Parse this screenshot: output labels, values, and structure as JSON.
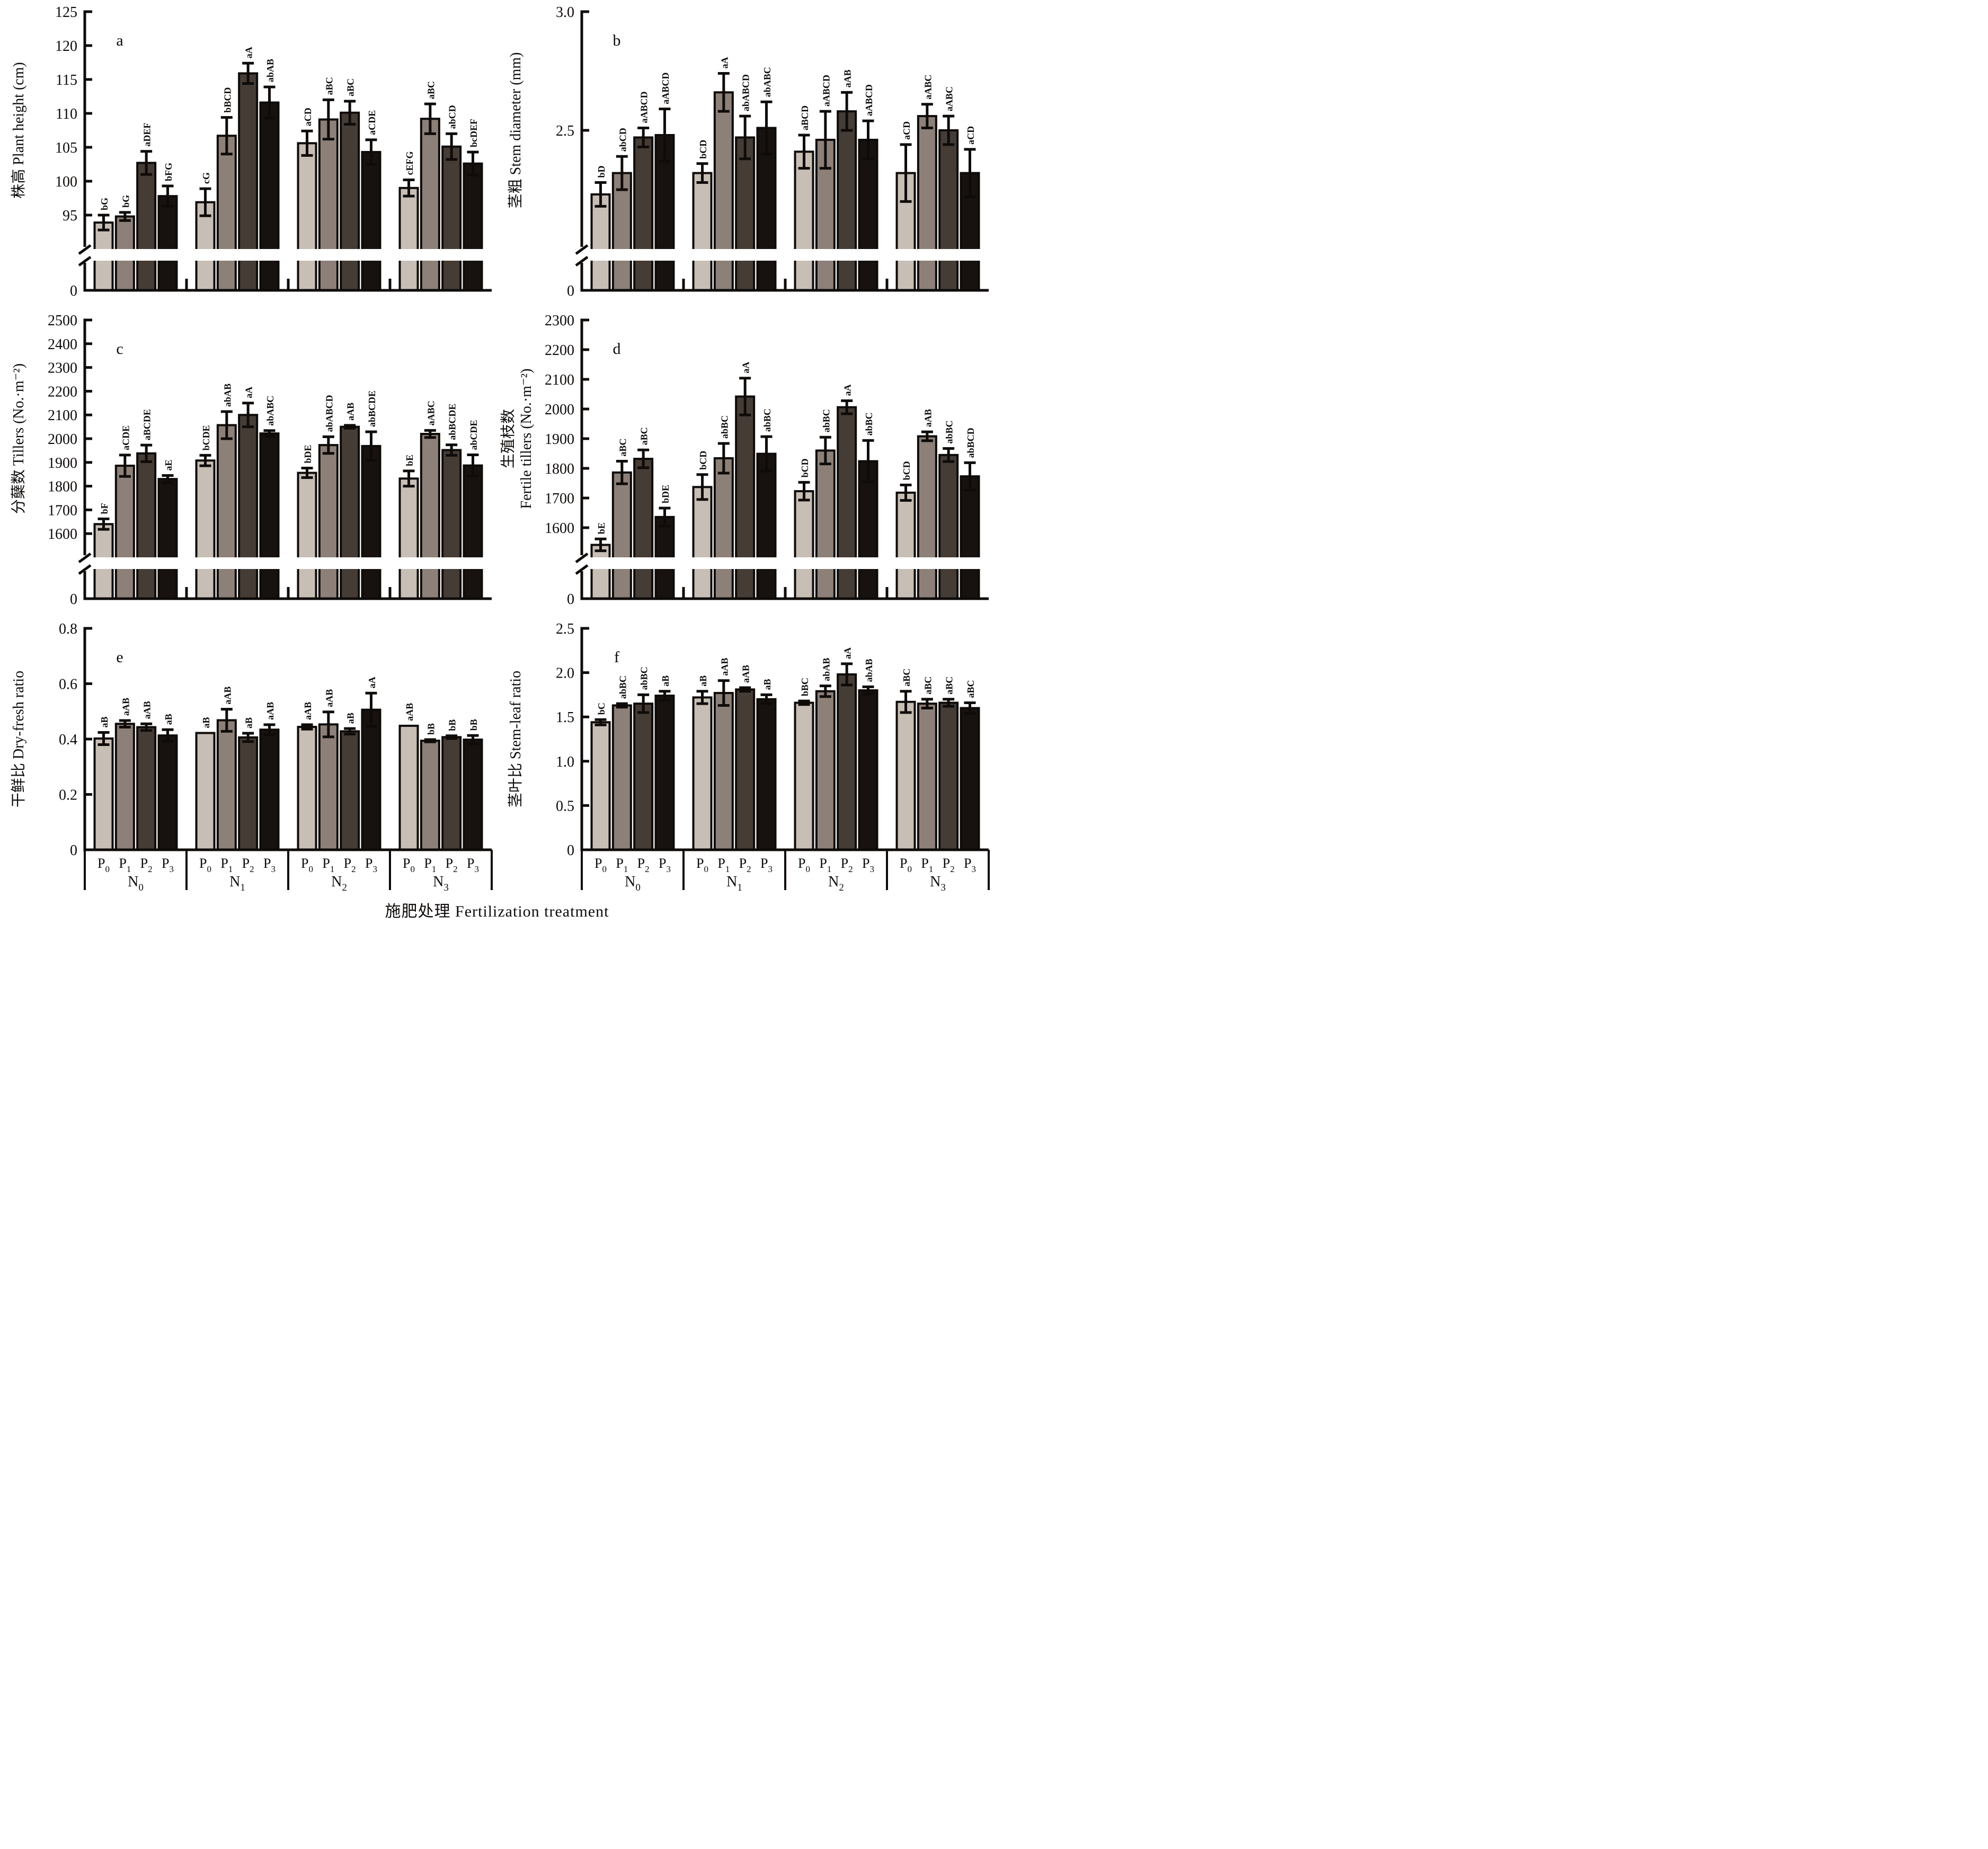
{
  "figure": {
    "x_axis_title": "施肥处理 Fertilization treatment",
    "p_labels": [
      {
        "base": "P",
        "sub": "0"
      },
      {
        "base": "P",
        "sub": "1"
      },
      {
        "base": "P",
        "sub": "2"
      },
      {
        "base": "P",
        "sub": "3"
      }
    ],
    "n_labels": [
      {
        "base": "N",
        "sub": "0"
      },
      {
        "base": "N",
        "sub": "1"
      },
      {
        "base": "N",
        "sub": "2"
      },
      {
        "base": "N",
        "sub": "3"
      }
    ],
    "bar_fill_colors": [
      "#c7beb6",
      "#8c8078",
      "#453c36",
      "#171210"
    ],
    "bar_edge_color": "#0e0b09",
    "axis_color": "#0e0b09",
    "background_color": "#ffffff"
  },
  "chart_data": [
    {
      "type": "bar",
      "panel_letter": "a",
      "ylabel_lines": [
        "株高 Plant height (cm)"
      ],
      "ylim": [
        90,
        125
      ],
      "axis_break": true,
      "zero_label": "0",
      "show_group_labels": false,
      "y_ticks": [
        {
          "v": 95,
          "t": "95"
        },
        {
          "v": 100,
          "t": "100"
        },
        {
          "v": 105,
          "t": "105"
        },
        {
          "v": 110,
          "t": "110"
        },
        {
          "v": 115,
          "t": "115"
        },
        {
          "v": 120,
          "t": "120"
        },
        {
          "v": 125,
          "t": "125"
        }
      ],
      "categories": [
        "P0",
        "P1",
        "P2",
        "P3"
      ],
      "groups": [
        {
          "name": "N0",
          "bars": [
            {
              "value": 93.9,
              "err": 1.1,
              "sig": "bG"
            },
            {
              "value": 94.8,
              "err": 0.6,
              "sig": "bG"
            },
            {
              "value": 102.7,
              "err": 1.7,
              "sig": "aDEF"
            },
            {
              "value": 97.8,
              "err": 1.5,
              "sig": "bFG"
            }
          ]
        },
        {
          "name": "N1",
          "bars": [
            {
              "value": 96.9,
              "err": 2.0,
              "sig": "cG"
            },
            {
              "value": 106.7,
              "err": 2.7,
              "sig": "bBCD"
            },
            {
              "value": 115.9,
              "err": 1.5,
              "sig": "aA"
            },
            {
              "value": 111.6,
              "err": 2.3,
              "sig": "abAB"
            }
          ]
        },
        {
          "name": "N2",
          "bars": [
            {
              "value": 105.6,
              "err": 1.8,
              "sig": "aCD"
            },
            {
              "value": 109.1,
              "err": 2.9,
              "sig": "aBC"
            },
            {
              "value": 110.1,
              "err": 1.7,
              "sig": "aBC"
            },
            {
              "value": 104.3,
              "err": 1.8,
              "sig": "aCDE"
            }
          ]
        },
        {
          "name": "N3",
          "bars": [
            {
              "value": 99.0,
              "err": 1.2,
              "sig": "cEFG"
            },
            {
              "value": 109.2,
              "err": 2.2,
              "sig": "aBC"
            },
            {
              "value": 105.1,
              "err": 1.9,
              "sig": "abCD"
            },
            {
              "value": 102.6,
              "err": 1.7,
              "sig": "bcDEF"
            }
          ]
        }
      ]
    },
    {
      "type": "bar",
      "panel_letter": "b",
      "ylabel_lines": [
        "茎粗 Stem diameter (mm)"
      ],
      "ylim": [
        2.0,
        3.0
      ],
      "axis_break": true,
      "zero_label": "0",
      "show_group_labels": false,
      "y_ticks": [
        {
          "v": 2.5,
          "t": "2.5"
        },
        {
          "v": 3.0,
          "t": "3.0"
        }
      ],
      "categories": [
        "P0",
        "P1",
        "P2",
        "P3"
      ],
      "groups": [
        {
          "name": "N0",
          "bars": [
            {
              "value": 2.23,
              "err": 0.05,
              "sig": "bD"
            },
            {
              "value": 2.32,
              "err": 0.07,
              "sig": "abCD"
            },
            {
              "value": 2.47,
              "err": 0.04,
              "sig": "aABCD"
            },
            {
              "value": 2.48,
              "err": 0.11,
              "sig": "aABCD"
            }
          ]
        },
        {
          "name": "N1",
          "bars": [
            {
              "value": 2.32,
              "err": 0.04,
              "sig": "bCD"
            },
            {
              "value": 2.66,
              "err": 0.08,
              "sig": "aA"
            },
            {
              "value": 2.47,
              "err": 0.09,
              "sig": "abABCD"
            },
            {
              "value": 2.51,
              "err": 0.11,
              "sig": "abABC"
            }
          ]
        },
        {
          "name": "N2",
          "bars": [
            {
              "value": 2.41,
              "err": 0.07,
              "sig": "aBCD"
            },
            {
              "value": 2.46,
              "err": 0.12,
              "sig": "aABCD"
            },
            {
              "value": 2.58,
              "err": 0.08,
              "sig": "aAB"
            },
            {
              "value": 2.46,
              "err": 0.08,
              "sig": "aABCD"
            }
          ]
        },
        {
          "name": "N3",
          "bars": [
            {
              "value": 2.32,
              "err": 0.12,
              "sig": "aCD"
            },
            {
              "value": 2.56,
              "err": 0.05,
              "sig": "aABC"
            },
            {
              "value": 2.5,
              "err": 0.06,
              "sig": "aABC"
            },
            {
              "value": 2.32,
              "err": 0.1,
              "sig": "aCD"
            }
          ]
        }
      ]
    },
    {
      "type": "bar",
      "panel_letter": "c",
      "ylabel_lines": [
        "分蘖数 Tillers (No.·m⁻²)"
      ],
      "ylim": [
        1500,
        2500
      ],
      "axis_break": true,
      "zero_label": "0",
      "show_group_labels": false,
      "y_ticks": [
        {
          "v": 1600,
          "t": "1600"
        },
        {
          "v": 1700,
          "t": "1700"
        },
        {
          "v": 1800,
          "t": "1800"
        },
        {
          "v": 1900,
          "t": "1900"
        },
        {
          "v": 2000,
          "t": "2000"
        },
        {
          "v": 2100,
          "t": "2100"
        },
        {
          "v": 2200,
          "t": "2200"
        },
        {
          "v": 2300,
          "t": "2300"
        },
        {
          "v": 2400,
          "t": "2400"
        },
        {
          "v": 2500,
          "t": "2500"
        }
      ],
      "categories": [
        "P0",
        "P1",
        "P2",
        "P3"
      ],
      "groups": [
        {
          "name": "N0",
          "bars": [
            {
              "value": 1640,
              "err": 22,
              "sig": "bF"
            },
            {
              "value": 1886,
              "err": 45,
              "sig": "aCDE"
            },
            {
              "value": 1938,
              "err": 35,
              "sig": "aBCDE"
            },
            {
              "value": 1830,
              "err": 15,
              "sig": "aE"
            }
          ]
        },
        {
          "name": "N1",
          "bars": [
            {
              "value": 1908,
              "err": 22,
              "sig": "bCDE"
            },
            {
              "value": 2057,
              "err": 57,
              "sig": "abAB"
            },
            {
              "value": 2100,
              "err": 50,
              "sig": "aA"
            },
            {
              "value": 2022,
              "err": 12,
              "sig": "abABC"
            }
          ]
        },
        {
          "name": "N2",
          "bars": [
            {
              "value": 1856,
              "err": 20,
              "sig": "bDE"
            },
            {
              "value": 1973,
              "err": 35,
              "sig": "abABCD"
            },
            {
              "value": 2050,
              "err": 6,
              "sig": "aAB"
            },
            {
              "value": 1969,
              "err": 60,
              "sig": "abBCDE"
            }
          ]
        },
        {
          "name": "N3",
          "bars": [
            {
              "value": 1832,
              "err": 32,
              "sig": "bE"
            },
            {
              "value": 2020,
              "err": 15,
              "sig": "aABC"
            },
            {
              "value": 1952,
              "err": 22,
              "sig": "abBCDE"
            },
            {
              "value": 1887,
              "err": 45,
              "sig": "abCDE"
            }
          ]
        }
      ]
    },
    {
      "type": "bar",
      "panel_letter": "d",
      "ylabel_lines": [
        "生殖枝数",
        "Fertile tillers (No.·m⁻²)"
      ],
      "ylim": [
        1500,
        2300
      ],
      "axis_break": true,
      "zero_label": "0",
      "show_group_labels": false,
      "y_ticks": [
        {
          "v": 1600,
          "t": "1600"
        },
        {
          "v": 1700,
          "t": "1700"
        },
        {
          "v": 1800,
          "t": "1800"
        },
        {
          "v": 1900,
          "t": "1900"
        },
        {
          "v": 2000,
          "t": "2000"
        },
        {
          "v": 2100,
          "t": "2100"
        },
        {
          "v": 2200,
          "t": "2200"
        },
        {
          "v": 2300,
          "t": "2300"
        }
      ],
      "categories": [
        "P0",
        "P1",
        "P2",
        "P3"
      ],
      "groups": [
        {
          "name": "N0",
          "bars": [
            {
              "value": 1542,
              "err": 20,
              "sig": "bE"
            },
            {
              "value": 1786,
              "err": 38,
              "sig": "aBC"
            },
            {
              "value": 1832,
              "err": 30,
              "sig": "aBC"
            },
            {
              "value": 1636,
              "err": 30,
              "sig": "bDE"
            }
          ]
        },
        {
          "name": "N1",
          "bars": [
            {
              "value": 1737,
              "err": 42,
              "sig": "bCD"
            },
            {
              "value": 1834,
              "err": 50,
              "sig": "abBC"
            },
            {
              "value": 2042,
              "err": 62,
              "sig": "aA"
            },
            {
              "value": 1849,
              "err": 58,
              "sig": "abBC"
            }
          ]
        },
        {
          "name": "N2",
          "bars": [
            {
              "value": 1723,
              "err": 30,
              "sig": "bCD"
            },
            {
              "value": 1860,
              "err": 45,
              "sig": "abBC"
            },
            {
              "value": 2006,
              "err": 22,
              "sig": "aA"
            },
            {
              "value": 1824,
              "err": 70,
              "sig": "abBC"
            }
          ]
        },
        {
          "name": "N3",
          "bars": [
            {
              "value": 1718,
              "err": 26,
              "sig": "bCD"
            },
            {
              "value": 1908,
              "err": 15,
              "sig": "aAB"
            },
            {
              "value": 1845,
              "err": 22,
              "sig": "abBC"
            },
            {
              "value": 1773,
              "err": 46,
              "sig": "abBCD"
            }
          ]
        }
      ]
    },
    {
      "type": "bar",
      "panel_letter": "e",
      "ylabel_lines": [
        "干鲜比 Dry-fresh ratio"
      ],
      "ylim": [
        0,
        0.8
      ],
      "axis_break": false,
      "zero_label": "0",
      "show_group_labels": true,
      "y_ticks": [
        {
          "v": 0,
          "t": "0"
        },
        {
          "v": 0.2,
          "t": "0.2"
        },
        {
          "v": 0.4,
          "t": "0.4"
        },
        {
          "v": 0.6,
          "t": "0.6"
        },
        {
          "v": 0.8,
          "t": "0.8"
        }
      ],
      "categories": [
        "P0",
        "P1",
        "P2",
        "P3"
      ],
      "groups": [
        {
          "name": "N0",
          "bars": [
            {
              "value": 0.402,
              "err": 0.022,
              "sig": "aB"
            },
            {
              "value": 0.455,
              "err": 0.012,
              "sig": "aAB"
            },
            {
              "value": 0.443,
              "err": 0.012,
              "sig": "aAB"
            },
            {
              "value": 0.413,
              "err": 0.021,
              "sig": "aB"
            }
          ]
        },
        {
          "name": "N1",
          "bars": [
            {
              "value": 0.422,
              "err": 0,
              "sig": "aB"
            },
            {
              "value": 0.468,
              "err": 0.04,
              "sig": "aAB"
            },
            {
              "value": 0.406,
              "err": 0.015,
              "sig": "aB"
            },
            {
              "value": 0.434,
              "err": 0.018,
              "sig": "aAB"
            }
          ]
        },
        {
          "name": "N2",
          "bars": [
            {
              "value": 0.444,
              "err": 0.008,
              "sig": "aAB"
            },
            {
              "value": 0.453,
              "err": 0.045,
              "sig": "aAB"
            },
            {
              "value": 0.428,
              "err": 0.01,
              "sig": "aB"
            },
            {
              "value": 0.506,
              "err": 0.06,
              "sig": "aA"
            }
          ]
        },
        {
          "name": "N3",
          "bars": [
            {
              "value": 0.448,
              "err": 0,
              "sig": "aAB"
            },
            {
              "value": 0.394,
              "err": 0.004,
              "sig": "bB"
            },
            {
              "value": 0.407,
              "err": 0.005,
              "sig": "bB"
            },
            {
              "value": 0.398,
              "err": 0.015,
              "sig": "bB"
            }
          ]
        }
      ]
    },
    {
      "type": "bar",
      "panel_letter": "f",
      "ylabel_lines": [
        "茎叶比 Stem-leaf ratio"
      ],
      "ylim": [
        0,
        2.5
      ],
      "axis_break": false,
      "zero_label": "0",
      "show_group_labels": true,
      "y_ticks": [
        {
          "v": 0,
          "t": "0"
        },
        {
          "v": 0.5,
          "t": "0.5"
        },
        {
          "v": 1.0,
          "t": "1.0"
        },
        {
          "v": 1.5,
          "t": "1.5"
        },
        {
          "v": 2.0,
          "t": "2.0"
        },
        {
          "v": 2.5,
          "t": "2.5"
        }
      ],
      "categories": [
        "P0",
        "P1",
        "P2",
        "P3"
      ],
      "groups": [
        {
          "name": "N0",
          "bars": [
            {
              "value": 1.44,
              "err": 0.03,
              "sig": "bC"
            },
            {
              "value": 1.63,
              "err": 0.02,
              "sig": "abBC"
            },
            {
              "value": 1.65,
              "err": 0.1,
              "sig": "abBC"
            },
            {
              "value": 1.74,
              "err": 0.05,
              "sig": "aB"
            }
          ]
        },
        {
          "name": "N1",
          "bars": [
            {
              "value": 1.72,
              "err": 0.07,
              "sig": "aB"
            },
            {
              "value": 1.77,
              "err": 0.14,
              "sig": "aAB"
            },
            {
              "value": 1.81,
              "err": 0.02,
              "sig": "aAB"
            },
            {
              "value": 1.7,
              "err": 0.05,
              "sig": "aB"
            }
          ]
        },
        {
          "name": "N2",
          "bars": [
            {
              "value": 1.66,
              "err": 0.02,
              "sig": "bBC"
            },
            {
              "value": 1.79,
              "err": 0.06,
              "sig": "abAB"
            },
            {
              "value": 1.98,
              "err": 0.12,
              "sig": "aA"
            },
            {
              "value": 1.8,
              "err": 0.04,
              "sig": "abAB"
            }
          ]
        },
        {
          "name": "N3",
          "bars": [
            {
              "value": 1.67,
              "err": 0.12,
              "sig": "aBC"
            },
            {
              "value": 1.65,
              "err": 0.05,
              "sig": "aBC"
            },
            {
              "value": 1.66,
              "err": 0.04,
              "sig": "aBC"
            },
            {
              "value": 1.6,
              "err": 0.06,
              "sig": "aBC"
            }
          ]
        }
      ]
    }
  ]
}
